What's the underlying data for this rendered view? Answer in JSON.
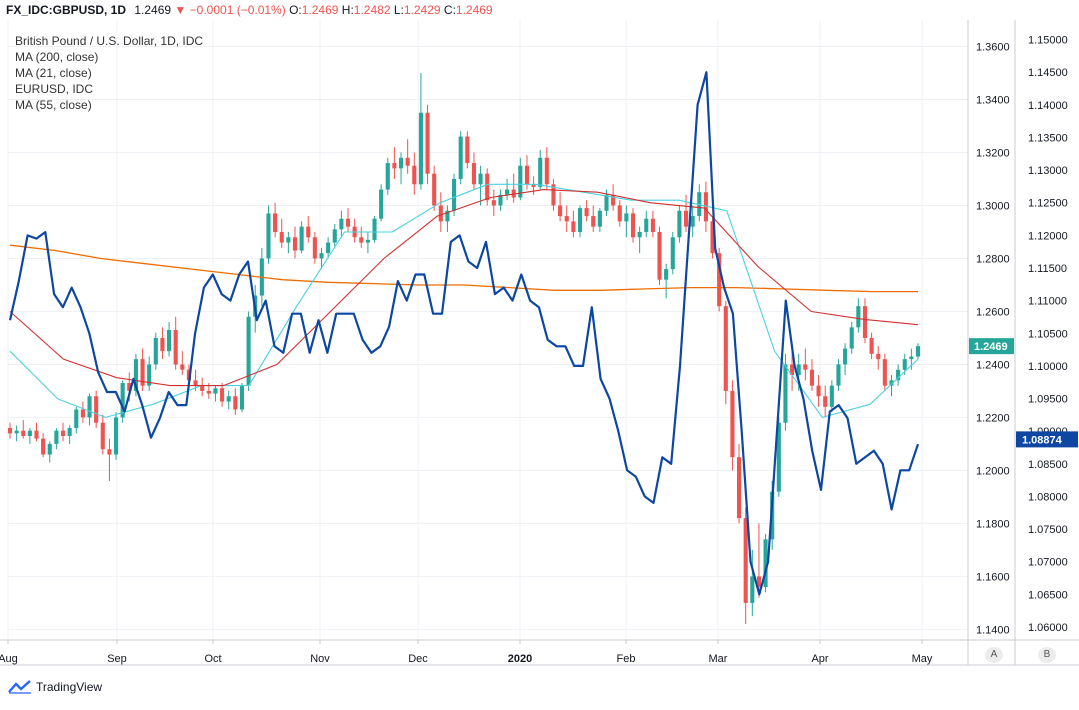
{
  "header": {
    "symbol": "FX_IDC:GBPUSD, 1D",
    "last": "1.2469",
    "change": "−0.0001 (−0.01%)",
    "open_label": "O:",
    "open": "1.2469",
    "high_label": "H:",
    "high": "1.2482",
    "low_label": "L:",
    "low": "1.2429",
    "close_label": "C:",
    "close": "1.2469"
  },
  "legend": {
    "title": "British Pound / U.S. Dollar, 1D, IDC",
    "ma200": "MA (200, close)",
    "ma21": "MA (21, close)",
    "eurusd": "EURUSD, IDC",
    "ma55": "MA (55, close)"
  },
  "footer": {
    "brand": "TradingView"
  },
  "scale_buttons": {
    "a": "A",
    "b": "B"
  },
  "colors": {
    "up": "#26a69a",
    "down": "#ef5350",
    "ma200": "#ef6c00",
    "ma55": "#d32f2f",
    "ma21": "#4dd0e1",
    "eurusd": "#0d47a1",
    "grid": "#eef1f6",
    "axis": "#c9ccd3",
    "gbp_label_bg": "#26a69a",
    "eur_label_bg": "#0d47a1"
  },
  "chart_data": {
    "type": "line",
    "title": "British Pound / U.S. Dollar, 1D, IDC",
    "x_ticks": [
      "Aug",
      "Sep",
      "Oct",
      "Nov",
      "Dec",
      "2020",
      "Feb",
      "Mar",
      "Apr",
      "May"
    ],
    "y_left": {
      "label": "GBPUSD",
      "range": [
        1.136,
        1.37
      ],
      "ticks": [
        "1.3600",
        "1.3400",
        "1.3200",
        "1.3000",
        "1.2800",
        "1.2600",
        "1.2400",
        "1.2200",
        "1.2000",
        "1.1800",
        "1.1600",
        "1.1400"
      ],
      "current": "1.2469"
    },
    "y_right": {
      "label": "EURUSD",
      "range": [
        1.058,
        1.153
      ],
      "ticks": [
        "1.15000",
        "1.14500",
        "1.14000",
        "1.13500",
        "1.13000",
        "1.12500",
        "1.12000",
        "1.11500",
        "1.11000",
        "1.10500",
        "1.10000",
        "1.09500",
        "1.09000",
        "1.08500",
        "1.08000",
        "1.07500",
        "1.07000",
        "1.06500",
        "1.06000"
      ],
      "current": "1.08874"
    },
    "grid": true,
    "ohlc_gbpusd": [
      [
        1.216,
        1.218,
        1.212,
        1.214
      ],
      [
        1.214,
        1.217,
        1.211,
        1.215
      ],
      [
        1.215,
        1.219,
        1.212,
        1.213
      ],
      [
        1.213,
        1.216,
        1.21,
        1.215
      ],
      [
        1.215,
        1.218,
        1.211,
        1.212
      ],
      [
        1.212,
        1.214,
        1.205,
        1.206
      ],
      [
        1.206,
        1.211,
        1.203,
        1.21
      ],
      [
        1.21,
        1.216,
        1.208,
        1.215
      ],
      [
        1.215,
        1.218,
        1.211,
        1.213
      ],
      [
        1.213,
        1.217,
        1.21,
        1.216
      ],
      [
        1.216,
        1.224,
        1.214,
        1.223
      ],
      [
        1.223,
        1.226,
        1.218,
        1.22
      ],
      [
        1.22,
        1.229,
        1.217,
        1.228
      ],
      [
        1.228,
        1.23,
        1.216,
        1.218
      ],
      [
        1.218,
        1.221,
        1.206,
        1.208
      ],
      [
        1.208,
        1.212,
        1.196,
        1.206
      ],
      [
        1.206,
        1.222,
        1.204,
        1.22
      ],
      [
        1.22,
        1.234,
        1.218,
        1.233
      ],
      [
        1.233,
        1.237,
        1.226,
        1.23
      ],
      [
        1.23,
        1.244,
        1.228,
        1.242
      ],
      [
        1.242,
        1.246,
        1.23,
        1.232
      ],
      [
        1.232,
        1.243,
        1.23,
        1.24
      ],
      [
        1.24,
        1.252,
        1.238,
        1.25
      ],
      [
        1.25,
        1.254,
        1.242,
        1.245
      ],
      [
        1.245,
        1.256,
        1.243,
        1.253
      ],
      [
        1.253,
        1.258,
        1.238,
        1.24
      ],
      [
        1.24,
        1.245,
        1.236,
        1.238
      ],
      [
        1.238,
        1.24,
        1.232,
        1.234
      ],
      [
        1.234,
        1.238,
        1.23,
        1.232
      ],
      [
        1.232,
        1.235,
        1.228,
        1.23
      ],
      [
        1.23,
        1.233,
        1.227,
        1.229
      ],
      [
        1.229,
        1.232,
        1.226,
        1.231
      ],
      [
        1.231,
        1.233,
        1.224,
        1.226
      ],
      [
        1.226,
        1.23,
        1.223,
        1.228
      ],
      [
        1.228,
        1.231,
        1.221,
        1.223
      ],
      [
        1.223,
        1.233,
        1.222,
        1.232
      ],
      [
        1.232,
        1.26,
        1.23,
        1.258
      ],
      [
        1.258,
        1.27,
        1.252,
        1.266
      ],
      [
        1.266,
        1.284,
        1.262,
        1.28
      ],
      [
        1.28,
        1.3,
        1.278,
        1.297
      ],
      [
        1.297,
        1.301,
        1.288,
        1.29
      ],
      [
        1.29,
        1.295,
        1.284,
        1.286
      ],
      [
        1.286,
        1.29,
        1.282,
        1.288
      ],
      [
        1.288,
        1.292,
        1.28,
        1.283
      ],
      [
        1.283,
        1.294,
        1.282,
        1.292
      ],
      [
        1.292,
        1.296,
        1.286,
        1.288
      ],
      [
        1.288,
        1.29,
        1.278,
        1.28
      ],
      [
        1.28,
        1.284,
        1.276,
        1.282
      ],
      [
        1.282,
        1.288,
        1.28,
        1.286
      ],
      [
        1.286,
        1.293,
        1.284,
        1.291
      ],
      [
        1.291,
        1.298,
        1.288,
        1.295
      ],
      [
        1.295,
        1.299,
        1.29,
        1.292
      ],
      [
        1.292,
        1.295,
        1.286,
        1.288
      ],
      [
        1.288,
        1.292,
        1.284,
        1.286
      ],
      [
        1.286,
        1.29,
        1.282,
        1.287
      ],
      [
        1.287,
        1.296,
        1.286,
        1.295
      ],
      [
        1.295,
        1.308,
        1.294,
        1.306
      ],
      [
        1.306,
        1.318,
        1.304,
        1.316
      ],
      [
        1.316,
        1.322,
        1.31,
        1.314
      ],
      [
        1.314,
        1.32,
        1.308,
        1.318
      ],
      [
        1.318,
        1.325,
        1.312,
        1.315
      ],
      [
        1.315,
        1.32,
        1.304,
        1.308
      ],
      [
        1.308,
        1.35,
        1.306,
        1.335
      ],
      [
        1.335,
        1.338,
        1.308,
        1.312
      ],
      [
        1.312,
        1.315,
        1.298,
        1.3
      ],
      [
        1.3,
        1.305,
        1.29,
        1.294
      ],
      [
        1.294,
        1.3,
        1.29,
        1.298
      ],
      [
        1.298,
        1.312,
        1.296,
        1.31
      ],
      [
        1.31,
        1.328,
        1.308,
        1.326
      ],
      [
        1.326,
        1.328,
        1.314,
        1.316
      ],
      [
        1.316,
        1.32,
        1.306,
        1.308
      ],
      [
        1.308,
        1.315,
        1.3,
        1.312
      ],
      [
        1.312,
        1.314,
        1.3,
        1.302
      ],
      [
        1.302,
        1.306,
        1.296,
        1.3
      ],
      [
        1.3,
        1.306,
        1.298,
        1.304
      ],
      [
        1.304,
        1.31,
        1.302,
        1.306
      ],
      [
        1.306,
        1.312,
        1.301,
        1.303
      ],
      [
        1.303,
        1.318,
        1.302,
        1.315
      ],
      [
        1.315,
        1.319,
        1.306,
        1.308
      ],
      [
        1.308,
        1.311,
        1.304,
        1.307
      ],
      [
        1.307,
        1.321,
        1.306,
        1.318
      ],
      [
        1.318,
        1.322,
        1.306,
        1.308
      ],
      [
        1.308,
        1.31,
        1.298,
        1.3
      ],
      [
        1.3,
        1.305,
        1.294,
        1.296
      ],
      [
        1.296,
        1.3,
        1.29,
        1.294
      ],
      [
        1.294,
        1.298,
        1.288,
        1.29
      ],
      [
        1.29,
        1.3,
        1.288,
        1.299
      ],
      [
        1.299,
        1.302,
        1.294,
        1.296
      ],
      [
        1.296,
        1.3,
        1.29,
        1.292
      ],
      [
        1.292,
        1.299,
        1.29,
        1.298
      ],
      [
        1.298,
        1.306,
        1.296,
        1.304
      ],
      [
        1.304,
        1.308,
        1.298,
        1.3
      ],
      [
        1.3,
        1.302,
        1.292,
        1.294
      ],
      [
        1.294,
        1.3,
        1.288,
        1.297
      ],
      [
        1.297,
        1.299,
        1.286,
        1.288
      ],
      [
        1.288,
        1.292,
        1.282,
        1.29
      ],
      [
        1.29,
        1.298,
        1.288,
        1.295
      ],
      [
        1.295,
        1.298,
        1.288,
        1.29
      ],
      [
        1.29,
        1.292,
        1.27,
        1.272
      ],
      [
        1.272,
        1.278,
        1.265,
        1.276
      ],
      [
        1.276,
        1.29,
        1.274,
        1.288
      ],
      [
        1.288,
        1.3,
        1.286,
        1.298
      ],
      [
        1.298,
        1.304,
        1.29,
        1.292
      ],
      [
        1.292,
        1.3,
        1.288,
        1.296
      ],
      [
        1.296,
        1.308,
        1.294,
        1.305
      ],
      [
        1.305,
        1.309,
        1.29,
        1.294
      ],
      [
        1.294,
        1.296,
        1.28,
        1.282
      ],
      [
        1.282,
        1.284,
        1.26,
        1.262
      ],
      [
        1.262,
        1.264,
        1.225,
        1.23
      ],
      [
        1.23,
        1.234,
        1.2,
        1.205
      ],
      [
        1.205,
        1.21,
        1.18,
        1.182
      ],
      [
        1.182,
        1.186,
        1.142,
        1.15
      ],
      [
        1.15,
        1.17,
        1.145,
        1.16
      ],
      [
        1.16,
        1.18,
        1.152,
        1.156
      ],
      [
        1.156,
        1.176,
        1.154,
        1.174
      ],
      [
        1.174,
        1.196,
        1.17,
        1.192
      ],
      [
        1.192,
        1.22,
        1.19,
        1.218
      ],
      [
        1.218,
        1.244,
        1.215,
        1.24
      ],
      [
        1.24,
        1.248,
        1.23,
        1.236
      ],
      [
        1.236,
        1.244,
        1.23,
        1.24
      ],
      [
        1.24,
        1.246,
        1.234,
        1.238
      ],
      [
        1.238,
        1.242,
        1.23,
        1.232
      ],
      [
        1.232,
        1.236,
        1.224,
        1.228
      ],
      [
        1.228,
        1.232,
        1.22,
        1.224
      ],
      [
        1.224,
        1.234,
        1.222,
        1.232
      ],
      [
        1.232,
        1.242,
        1.23,
        1.24
      ],
      [
        1.24,
        1.248,
        1.236,
        1.246
      ],
      [
        1.246,
        1.256,
        1.244,
        1.254
      ],
      [
        1.254,
        1.265,
        1.252,
        1.262
      ],
      [
        1.262,
        1.265,
        1.248,
        1.25
      ],
      [
        1.25,
        1.252,
        1.242,
        1.244
      ],
      [
        1.244,
        1.247,
        1.238,
        1.242
      ],
      [
        1.242,
        1.244,
        1.23,
        1.232
      ],
      [
        1.232,
        1.236,
        1.228,
        1.234
      ],
      [
        1.234,
        1.24,
        1.232,
        1.238
      ],
      [
        1.238,
        1.244,
        1.236,
        1.242
      ],
      [
        1.242,
        1.246,
        1.238,
        1.243
      ],
      [
        1.243,
        1.248,
        1.242,
        1.2469
      ]
    ],
    "series": [
      {
        "name": "MA (200, close)",
        "color": "#ef6c00",
        "values": [
          1.285,
          1.283,
          1.28,
          1.278,
          1.276,
          1.274,
          1.272,
          1.271,
          1.2705,
          1.27,
          1.27,
          1.269,
          1.268,
          1.268,
          1.2685,
          1.269,
          1.269,
          1.2685,
          1.268,
          1.2675,
          1.2675
        ]
      },
      {
        "name": "MA (21, close)",
        "color": "#4dd0e1",
        "values": [
          1.245,
          1.227,
          1.22,
          1.225,
          1.232,
          1.232,
          1.262,
          1.29,
          1.29,
          1.301,
          1.308,
          1.308,
          1.305,
          1.302,
          1.302,
          1.298,
          1.245,
          1.22,
          1.225,
          1.242
        ]
      },
      {
        "name": "MA (55, close)",
        "color": "#d32f2f",
        "values": [
          1.26,
          1.242,
          1.235,
          1.232,
          1.232,
          1.24,
          1.26,
          1.28,
          1.296,
          1.303,
          1.306,
          1.305,
          1.301,
          1.299,
          1.277,
          1.26,
          1.257,
          1.255
        ]
      },
      {
        "name": "EURUSD, IDC",
        "color": "#0d47a1",
        "values": [
          1.107,
          1.113,
          1.12,
          1.1195,
          1.1205,
          1.111,
          1.109,
          1.112,
          1.109,
          1.105,
          1.099,
          1.096,
          1.096,
          1.093,
          1.098,
          1.094,
          1.089,
          1.092,
          1.096,
          1.094,
          1.094,
          1.105,
          1.112,
          1.114,
          1.111,
          1.11,
          1.114,
          1.116,
          1.107,
          1.11,
          1.103,
          1.102,
          1.108,
          1.108,
          1.102,
          1.107,
          1.102,
          1.108,
          1.108,
          1.108,
          1.104,
          1.102,
          1.103,
          1.106,
          1.113,
          1.11,
          1.114,
          1.114,
          1.108,
          1.108,
          1.119,
          1.12,
          1.116,
          1.115,
          1.119,
          1.111,
          1.112,
          1.11,
          1.114,
          1.11,
          1.109,
          1.104,
          1.103,
          1.103,
          1.1,
          1.1,
          1.109,
          1.098,
          1.095,
          1.09,
          1.084,
          1.083,
          1.08,
          1.079,
          1.086,
          1.085,
          1.1,
          1.12,
          1.14,
          1.145,
          1.118,
          1.112,
          1.108,
          1.09,
          1.07,
          1.065,
          1.07,
          1.09,
          1.11,
          1.1,
          1.095,
          1.087,
          1.081,
          1.093,
          1.094,
          1.092,
          1.085,
          1.086,
          1.087,
          1.085,
          1.078,
          1.084,
          1.084,
          1.088
        ]
      }
    ]
  }
}
